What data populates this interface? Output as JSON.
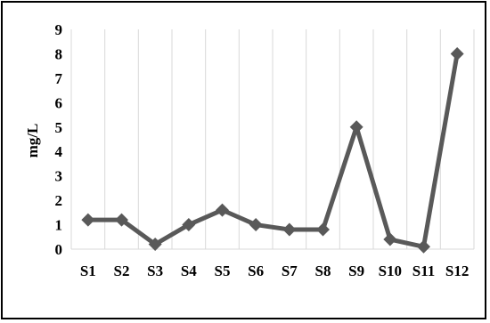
{
  "chart_data": {
    "type": "line",
    "title": "",
    "xlabel": "",
    "ylabel": "mg/L",
    "categories": [
      "S1",
      "S2",
      "S3",
      "S4",
      "S5",
      "S6",
      "S7",
      "S8",
      "S9",
      "S10",
      "S11",
      "S12"
    ],
    "series": [
      {
        "values": [
          1.2,
          1.2,
          0.2,
          1.0,
          1.6,
          1.0,
          0.8,
          0.8,
          5.0,
          0.4,
          0.1,
          8.0
        ]
      }
    ],
    "yticks": [
      "0",
      "1",
      "2",
      "3",
      "4",
      "5",
      "6",
      "7",
      "8",
      "9"
    ],
    "ylim": [
      0,
      9
    ],
    "grid": "vertical",
    "legend": "none",
    "colors": {
      "line": "#595959",
      "grid": "#d9d9d9",
      "frame": "#000000"
    }
  }
}
